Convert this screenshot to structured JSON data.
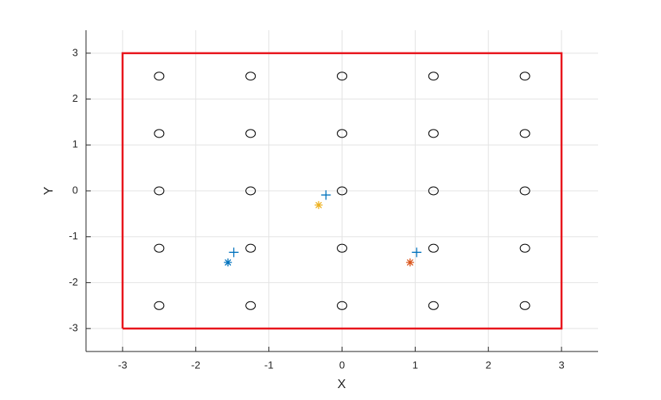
{
  "chart_data": {
    "type": "scatter",
    "xlabel": "X",
    "ylabel": "Y",
    "xlim": [
      -3.5,
      3.5
    ],
    "ylim": [
      -3.5,
      3.5
    ],
    "xticks": [
      -3,
      -2,
      -1,
      0,
      1,
      2,
      3
    ],
    "yticks": [
      -3,
      -2,
      -1,
      0,
      1,
      2,
      3
    ],
    "grid": true,
    "series": [
      {
        "mode": "line",
        "color": "#e8141b",
        "x": [
          -3,
          3,
          3,
          -3,
          -3
        ],
        "values": [
          -3,
          -3,
          3,
          3,
          -3
        ]
      },
      {
        "mode": "circle",
        "color": "#000000",
        "x": [
          -2.5,
          -2.5,
          -2.5,
          -2.5,
          -2.5,
          -1.25,
          -1.25,
          -1.25,
          -1.25,
          -1.25,
          0,
          0,
          0,
          0,
          0,
          1.25,
          1.25,
          1.25,
          1.25,
          1.25,
          2.5,
          2.5,
          2.5,
          2.5,
          2.5
        ],
        "values": [
          -2.5,
          -1.25,
          0,
          1.25,
          2.5,
          -2.5,
          -1.25,
          0,
          1.25,
          2.5,
          -2.5,
          -1.25,
          0,
          1.25,
          2.5,
          -2.5,
          -1.25,
          0,
          1.25,
          2.5,
          -2.5,
          -1.25,
          0,
          1.25,
          2.5
        ]
      },
      {
        "mode": "plus",
        "color": "#0072bd",
        "x": [
          -1.48,
          -0.22,
          1.02
        ],
        "values": [
          -1.34,
          -0.09,
          -1.34
        ]
      },
      {
        "mode": "asterisk",
        "color": "#0072bd",
        "x": [
          -1.56
        ],
        "values": [
          -1.56
        ]
      },
      {
        "mode": "asterisk",
        "color": "#edb120",
        "x": [
          -0.32
        ],
        "values": [
          -0.31
        ]
      },
      {
        "mode": "asterisk",
        "color": "#d95319",
        "x": [
          0.93
        ],
        "values": [
          -1.56
        ]
      }
    ]
  }
}
